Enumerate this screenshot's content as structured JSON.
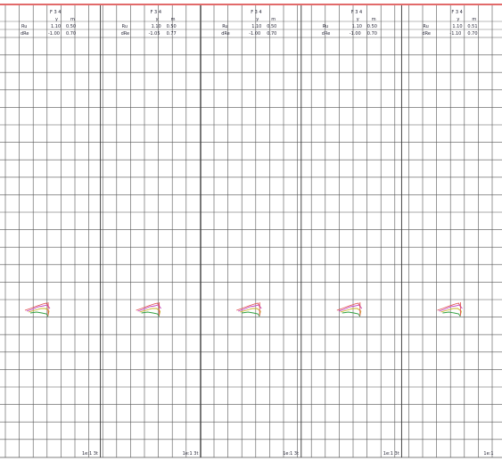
{
  "screen": {
    "colors": {
      "background": "#ffffff",
      "grid_line": "#555555",
      "red_band": "#e26a6a",
      "trace_red": "#e05050",
      "trace_magenta": "#c040c0",
      "trace_yellow": "#c8b020",
      "trace_green": "#30a040",
      "text": "#2a2a3a"
    }
  },
  "panels": [
    {
      "id": "F 3 4",
      "col_y": "y",
      "col_m": "m",
      "row1_label": "Ru",
      "row1_y": "1.10",
      "row1_m": "0.50",
      "row2_label": "dRe",
      "row2_y": "-1.00",
      "row2_m": "0.70",
      "footer": "1e:1 3t"
    },
    {
      "id": "F 3 4",
      "col_y": "y",
      "col_m": "m",
      "row1_label": "Ru",
      "row1_y": "1.10",
      "row1_m": "0.50",
      "row2_label": "dRe",
      "row2_y": "-1.05",
      "row2_m": "0.77",
      "footer": "1e:1 3t"
    },
    {
      "id": "F 3 4",
      "col_y": "y",
      "col_m": "m",
      "row1_label": "Ru",
      "row1_y": "1.10",
      "row1_m": "0.50",
      "row2_label": "dRe",
      "row2_y": "-1.00",
      "row2_m": "0.70",
      "footer": "1e:1 3t"
    },
    {
      "id": "F 3 4",
      "col_y": "y",
      "col_m": "m",
      "row1_label": "Ru",
      "row1_y": "1.10",
      "row1_m": "0.50",
      "row2_label": "dRe",
      "row2_y": "-1.00",
      "row2_m": "0.70",
      "footer": "1e:1 3t"
    },
    {
      "id": "F 3 4",
      "col_y": "y",
      "col_m": "m",
      "row1_label": "Ru",
      "row1_y": "1.10",
      "row1_m": "0.51",
      "row2_label": "dRe",
      "row2_y": "-1.10",
      "row2_m": "0.70",
      "footer": "1e:1"
    }
  ]
}
